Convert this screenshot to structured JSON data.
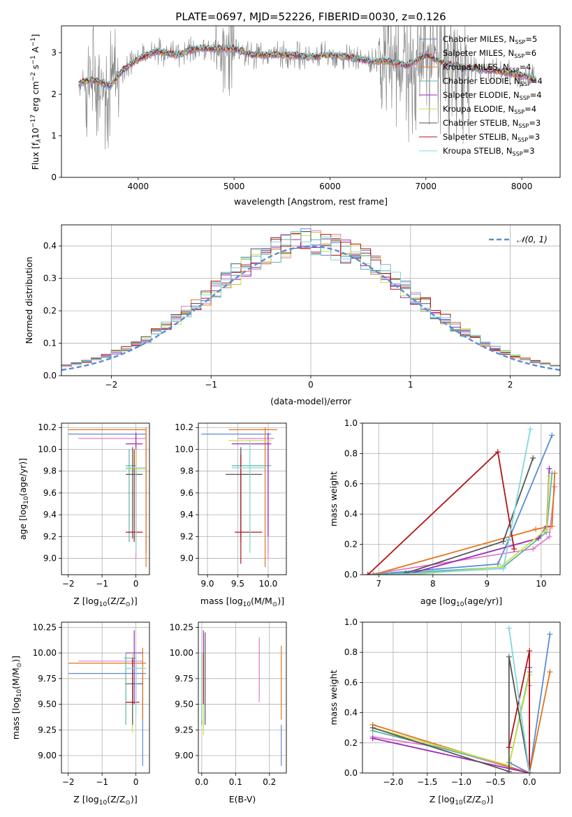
{
  "figure": {
    "title": "PLATE=0697, MJD=52226, FIBERID=0030, z=0.126"
  },
  "colors": {
    "axis": "#000000",
    "grid": "#b0b0b0",
    "data_spectrum": "#7f7f7f",
    "normal_curve": "#5b8bd6"
  },
  "models": [
    {
      "label": "Chabrier MILES, N",
      "sub": "SSP",
      "tail": "=5",
      "color": "#5b8bd6"
    },
    {
      "label": "Salpeter MILES, N",
      "sub": "SSP",
      "tail": "=6",
      "color": "#e37cc6"
    },
    {
      "label": "Kroupa MILES, N",
      "sub": "SSP",
      "tail": "=4",
      "color": "#e2731a"
    },
    {
      "label": "Chabrier ELODIE, N",
      "sub": "SSP",
      "tail": "=4",
      "color": "#5cb3a6"
    },
    {
      "label": "Salpeter ELODIE, N",
      "sub": "SSP",
      "tail": "=4",
      "color": "#9a2ab8"
    },
    {
      "label": "Kroupa ELODIE, N",
      "sub": "SSP",
      "tail": "=4",
      "color": "#c9e04a"
    },
    {
      "label": "Chabrier STELIB, N",
      "sub": "SSP",
      "tail": "=3",
      "color": "#555555"
    },
    {
      "label": "Salpeter STELIB, N",
      "sub": "SSP",
      "tail": "=3",
      "color": "#b01515"
    },
    {
      "label": "Kroupa STELIB, N",
      "sub": "SSP",
      "tail": "=3",
      "color": "#7fd8dc"
    }
  ],
  "chart_data": [
    {
      "id": "spectrum",
      "type": "line",
      "title": "PLATE=0697, MJD=52226, FIBERID=0030, z=0.126",
      "xlabel": "wavelength [Angstrom, rest frame]",
      "ylabel_parts": [
        "Flux [f",
        "λ",
        "10",
        "−17",
        " erg cm",
        "−2",
        " s",
        "−1",
        " A",
        "−1",
        "]"
      ],
      "xlim": [
        3200,
        8400
      ],
      "ylim": [
        0,
        3.65
      ],
      "xticks": [
        4000,
        5000,
        6000,
        7000,
        8000
      ],
      "yticks": [
        0,
        1,
        2,
        3
      ],
      "grid": false,
      "legend": "upper-right",
      "continuum": {
        "x": [
          3380,
          3500,
          3600,
          3700,
          3850,
          4000,
          4200,
          4400,
          4600,
          4800,
          5000,
          5200,
          5400,
          5600,
          5800,
          6000,
          6200,
          6400,
          6600,
          6800,
          7000,
          7200,
          7400,
          7600,
          7800,
          8000,
          8150
        ],
        "y": [
          2.25,
          2.35,
          2.3,
          2.2,
          2.6,
          2.85,
          3.05,
          2.95,
          3.1,
          3.1,
          3.1,
          2.95,
          2.95,
          2.95,
          2.9,
          2.95,
          2.9,
          2.8,
          2.8,
          2.7,
          2.95,
          2.75,
          2.65,
          2.6,
          2.55,
          2.45,
          2.35
        ]
      }
    },
    {
      "id": "residuals",
      "type": "histogram",
      "xlabel": "(data-model)/error",
      "ylabel": "Normed distribution",
      "xlim": [
        -2.5,
        2.5
      ],
      "ylim": [
        0,
        0.465
      ],
      "xticks": [
        -2,
        -1,
        0,
        1,
        2
      ],
      "yticks": [
        0.0,
        0.1,
        0.2,
        0.3,
        0.4
      ],
      "grid": true,
      "legend": "upper-right",
      "normal_label": "𝒩(0, 1)",
      "bin_width": 0.1
    },
    {
      "id": "age-vs-Z",
      "type": "errorbar",
      "xlabel_parts": [
        "Z [log",
        "10",
        "(Z/Z",
        "⊙",
        ")]"
      ],
      "ylabel_parts": [
        "age  [log",
        "10",
        "(age/yr)]"
      ],
      "xlim": [
        -2.2,
        0.4
      ],
      "ylim": [
        8.85,
        10.24
      ],
      "xticks": [
        -2,
        -1,
        0
      ],
      "yticks": [
        9.0,
        9.2,
        9.4,
        9.6,
        9.8,
        10.0,
        10.2
      ],
      "grid": true
    },
    {
      "id": "age-vs-mass",
      "type": "errorbar",
      "xlabel_parts": [
        "mass [log",
        "10",
        "(M/M",
        "⊙",
        ")]"
      ],
      "ylabel_parts": [],
      "xlim": [
        8.85,
        10.3
      ],
      "ylim": [
        8.85,
        10.24
      ],
      "xticks": [
        9.0,
        9.5,
        10.0
      ],
      "yticks": [
        9.0,
        9.2,
        9.4,
        9.6,
        9.8,
        10.0,
        10.2
      ],
      "grid": true
    },
    {
      "id": "mass-weight-vs-age",
      "type": "line",
      "xlabel_parts": [
        "age  [log",
        "10",
        "(age/yr)]"
      ],
      "ylabel": "mass weight",
      "xlim": [
        6.7,
        10.35
      ],
      "ylim": [
        0,
        1.0
      ],
      "xticks": [
        7,
        8,
        9,
        10
      ],
      "yticks": [
        0.0,
        0.2,
        0.4,
        0.6,
        0.8,
        1.0
      ],
      "grid": true,
      "series": [
        {
          "model": 0,
          "x": [
            6.8,
            9.2,
            9.4,
            10.2
          ],
          "y": [
            0.0,
            0.07,
            0.23,
            0.92
          ]
        },
        {
          "model": 1,
          "x": [
            6.8,
            9.85,
            10.15,
            10.25
          ],
          "y": [
            0.0,
            0.17,
            0.25,
            0.58
          ]
        },
        {
          "model": 2,
          "x": [
            6.9,
            9.9,
            10.2,
            10.25
          ],
          "y": [
            0.0,
            0.3,
            0.32,
            0.67
          ]
        },
        {
          "model": 3,
          "x": [
            6.9,
            9.3,
            10.1,
            10.2
          ],
          "y": [
            0.0,
            0.05,
            0.28,
            0.67
          ]
        },
        {
          "model": 4,
          "x": [
            7.5,
            9.95,
            10.1,
            10.15
          ],
          "y": [
            0.0,
            0.24,
            0.32,
            0.7
          ]
        },
        {
          "model": 5,
          "x": [
            7.6,
            9.25,
            10.1,
            10.15
          ],
          "y": [
            0.0,
            0.05,
            0.3,
            0.65
          ]
        },
        {
          "model": 6,
          "x": [
            7.5,
            9.3,
            9.85
          ],
          "y": [
            0.01,
            0.22,
            0.77
          ]
        },
        {
          "model": 7,
          "x": [
            6.8,
            9.2,
            9.5
          ],
          "y": [
            0.0,
            0.81,
            0.17
          ]
        },
        {
          "model": 8,
          "x": [
            7.2,
            9.3,
            9.8
          ],
          "y": [
            0.0,
            0.04,
            0.96
          ]
        }
      ]
    },
    {
      "id": "mass-vs-Z",
      "type": "errorbar",
      "xlabel_parts": [
        "Z [log",
        "10",
        "(Z/Z",
        "⊙",
        ")]"
      ],
      "ylabel_parts": [
        "mass [log",
        "10",
        "(M/M",
        "⊙",
        ")]"
      ],
      "xlim": [
        -2.2,
        0.4
      ],
      "ylim": [
        8.83,
        10.3
      ],
      "xticks": [
        -2,
        -1,
        0
      ],
      "yticks": [
        9.0,
        9.25,
        9.5,
        9.75,
        10.0,
        10.25
      ],
      "grid": true
    },
    {
      "id": "mass-vs-EBV",
      "type": "errorbar",
      "xlabel": "E(B-V)",
      "xlim": [
        -0.01,
        0.25
      ],
      "ylim": [
        8.83,
        10.3
      ],
      "xticks": [
        0.0,
        0.1,
        0.2
      ],
      "yticks": [
        9.0,
        9.25,
        9.5,
        9.75,
        10.0,
        10.25
      ],
      "grid": true
    },
    {
      "id": "mass-weight-vs-Z",
      "type": "line",
      "xlabel_parts": [
        "Z [log",
        "10",
        "(Z/Z",
        "⊙",
        ")]"
      ],
      "ylabel": "mass weight",
      "xlim": [
        -2.45,
        0.45
      ],
      "ylim": [
        0,
        1.0
      ],
      "xticks": [
        -2.0,
        -1.5,
        -1.0,
        -0.5,
        0.0
      ],
      "yticks": [
        0.0,
        0.2,
        0.4,
        0.6,
        0.8,
        1.0
      ],
      "grid": true,
      "series": [
        {
          "model": 0,
          "x": [
            -0.3,
            0.0,
            0.3
          ],
          "y": [
            0.07,
            0.0,
            0.92
          ]
        },
        {
          "model": 1,
          "x": [
            -2.3,
            -1.3,
            0.0,
            0.0
          ],
          "y": [
            0.24,
            0.17,
            0.0,
            0.58
          ]
        },
        {
          "model": 2,
          "x": [
            -2.3,
            0.0,
            0.3
          ],
          "y": [
            0.32,
            0.0,
            0.67
          ]
        },
        {
          "model": 3,
          "x": [
            -2.3,
            -0.3,
            0.0
          ],
          "y": [
            0.28,
            0.05,
            0.67
          ]
        },
        {
          "model": 4,
          "x": [
            -2.3,
            0.0,
            0.0
          ],
          "y": [
            0.23,
            0.0,
            0.7
          ]
        },
        {
          "model": 5,
          "x": [
            -2.3,
            -0.3,
            0.0
          ],
          "y": [
            0.3,
            0.05,
            0.65
          ]
        },
        {
          "model": 6,
          "x": [
            -2.3,
            -0.3,
            -0.3,
            0.0
          ],
          "y": [
            0.3,
            0.01,
            0.77,
            0.0
          ]
        },
        {
          "model": 7,
          "x": [
            -0.3,
            0.0,
            0.0
          ],
          "y": [
            0.17,
            0.81,
            0.0
          ]
        },
        {
          "model": 8,
          "x": [
            -0.3,
            0.0
          ],
          "y": [
            0.96,
            0.0
          ]
        }
      ]
    }
  ],
  "errorbars": {
    "age_Z": [
      {
        "model": 0,
        "x": 0.3,
        "xe": [
          -2.0,
          0.3
        ],
        "y": 10.14,
        "ye": [
          9.05,
          10.14
        ]
      },
      {
        "model": 1,
        "x": 0.0,
        "xe": [
          -1.7,
          0.3
        ],
        "y": 10.1,
        "ye": [
          9.0,
          10.15
        ]
      },
      {
        "model": 2,
        "x": 0.3,
        "xe": [
          -2.0,
          0.3
        ],
        "y": 10.18,
        "ye": [
          8.92,
          10.2
        ]
      },
      {
        "model": 3,
        "x": -0.2,
        "xe": [
          -0.3,
          0.0
        ],
        "y": 9.85,
        "ye": [
          9.15,
          10.0
        ]
      },
      {
        "model": 4,
        "x": 0.0,
        "xe": [
          -0.3,
          0.2
        ],
        "y": 10.05,
        "ye": [
          9.2,
          10.15
        ]
      },
      {
        "model": 5,
        "x": 0.0,
        "xe": [
          -0.3,
          0.3
        ],
        "y": 9.82,
        "ye": [
          9.05,
          10.0
        ]
      },
      {
        "model": 6,
        "x": -0.1,
        "xe": [
          -0.3,
          0.2
        ],
        "y": 9.77,
        "ye": [
          9.18,
          10.02
        ]
      },
      {
        "model": 7,
        "x": -0.05,
        "xe": [
          -0.3,
          0.2
        ],
        "y": 9.24,
        "ye": [
          9.15,
          10.0
        ]
      },
      {
        "model": 8,
        "x": 0.0,
        "xe": [
          -0.3,
          0.3
        ],
        "y": 9.83,
        "ye": [
          9.05,
          9.83
        ]
      }
    ],
    "age_mass": [
      {
        "model": 0,
        "x": 10.0,
        "xe": [
          8.9,
          10.05
        ],
        "y": 10.14,
        "ye": [
          9.05,
          10.14
        ]
      },
      {
        "model": 1,
        "x": 10.0,
        "xe": [
          9.5,
          10.1
        ],
        "y": 10.1,
        "ye": [
          9.0,
          10.15
        ]
      },
      {
        "model": 2,
        "x": 9.95,
        "xe": [
          9.35,
          10.15
        ],
        "y": 10.18,
        "ye": [
          8.92,
          10.2
        ]
      },
      {
        "model": 3,
        "x": 9.55,
        "xe": [
          9.4,
          10.05
        ],
        "y": 9.85,
        "ye": [
          9.15,
          10.0
        ]
      },
      {
        "model": 4,
        "x": 10.0,
        "xe": [
          9.4,
          10.05
        ],
        "y": 10.05,
        "ye": [
          9.2,
          10.15
        ]
      },
      {
        "model": 5,
        "x": 9.7,
        "xe": [
          9.35,
          10.05
        ],
        "y": 10.08,
        "ye": [
          9.05,
          10.08
        ]
      },
      {
        "model": 6,
        "x": 9.55,
        "xe": [
          9.3,
          9.9
        ],
        "y": 9.77,
        "ye": [
          9.18,
          10.02
        ]
      },
      {
        "model": 7,
        "x": 9.55,
        "xe": [
          9.45,
          9.9
        ],
        "y": 9.24,
        "ye": [
          8.95,
          9.95
        ]
      },
      {
        "model": 8,
        "x": 9.7,
        "xe": [
          9.4,
          9.95
        ],
        "y": 9.83,
        "ye": [
          9.05,
          10.05
        ]
      }
    ],
    "mass_Z": [
      {
        "model": 0,
        "x": 0.2,
        "xe": [
          -2.0,
          0.3
        ],
        "y": 9.8,
        "ye": [
          8.9,
          9.8
        ]
      },
      {
        "model": 1,
        "x": 0.0,
        "xe": [
          -1.7,
          0.2
        ],
        "y": 9.92,
        "ye": [
          9.55,
          9.95
        ]
      },
      {
        "model": 2,
        "x": 0.2,
        "xe": [
          -2.0,
          0.3
        ],
        "y": 9.9,
        "ye": [
          9.35,
          10.05
        ]
      },
      {
        "model": 3,
        "x": -0.3,
        "xe": [
          -0.35,
          0.0
        ],
        "y": 9.95,
        "ye": [
          9.3,
          10.0
        ]
      },
      {
        "model": 4,
        "x": -0.05,
        "xe": [
          -0.3,
          0.2
        ],
        "y": 10.0,
        "ye": [
          9.5,
          10.22
        ]
      },
      {
        "model": 5,
        "x": -0.1,
        "xe": [
          -0.3,
          0.2
        ],
        "y": 9.85,
        "ye": [
          9.22,
          10.0
        ]
      },
      {
        "model": 6,
        "x": -0.1,
        "xe": [
          -0.3,
          0.2
        ],
        "y": 9.7,
        "ye": [
          9.3,
          9.95
        ]
      },
      {
        "model": 7,
        "x": -0.1,
        "xe": [
          -0.3,
          0.1
        ],
        "y": 9.52,
        "ye": [
          9.5,
          9.95
        ]
      },
      {
        "model": 8,
        "x": 0.0,
        "xe": [
          -0.3,
          0.3
        ],
        "y": 9.85,
        "ye": [
          9.4,
          10.0
        ]
      }
    ],
    "mass_ebv": [
      {
        "model": 0,
        "y": 9.3,
        "x": 0.235,
        "ye": [
          8.9,
          9.3
        ]
      },
      {
        "model": 1,
        "y": 9.7,
        "x": 0.17,
        "ye": [
          9.52,
          10.15
        ]
      },
      {
        "model": 2,
        "y": 9.7,
        "x": 0.235,
        "ye": [
          9.35,
          10.07
        ]
      },
      {
        "model": 3,
        "y": 9.9,
        "x": 0.0,
        "ye": [
          9.3,
          10.0
        ]
      },
      {
        "model": 4,
        "y": 10.0,
        "x": 0.005,
        "ye": [
          9.5,
          10.22
        ]
      },
      {
        "model": 5,
        "y": 9.7,
        "x": 0.005,
        "ye": [
          9.2,
          10.0
        ]
      },
      {
        "model": 6,
        "y": 9.75,
        "x": 0.01,
        "ye": [
          9.3,
          10.2
        ]
      },
      {
        "model": 7,
        "y": 9.75,
        "x": 0.005,
        "ye": [
          9.5,
          10.0
        ]
      },
      {
        "model": 8,
        "y": 9.8,
        "x": 0.0,
        "ye": [
          9.35,
          10.0
        ]
      }
    ]
  }
}
